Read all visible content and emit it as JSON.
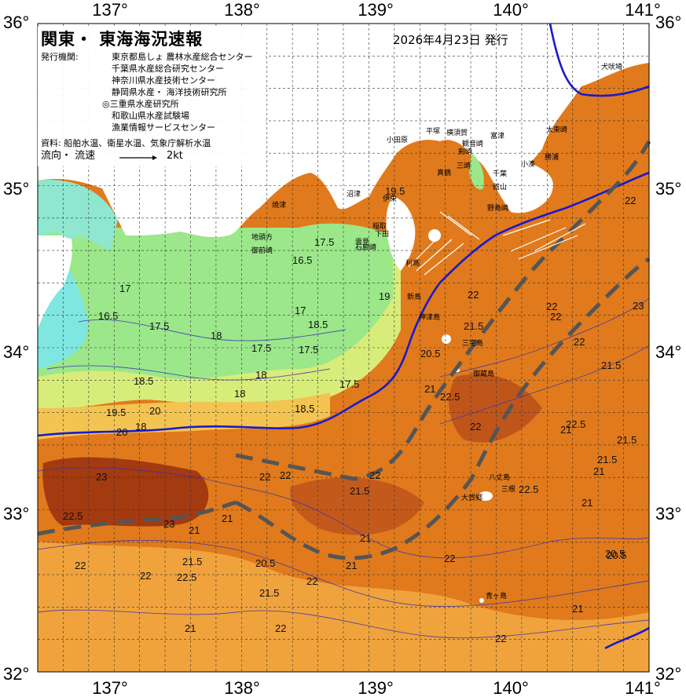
{
  "header": {
    "title": "関東・ 東海海況速報",
    "issue_date": "2026年4月23日 発行",
    "issuers_label": "発行機関:",
    "issuers": [
      "東京都島しょ 農林水産総合センター",
      "千葉県水産総合研究センター",
      "神奈川県水産技術センター",
      "静岡県水産・ 海洋技術研究所",
      "◎三重県水産研究所",
      "和歌山県水産試験場",
      "漁業情報サービスセンター"
    ],
    "source": "資料: 船舶水温、衛星水温、気象庁解析水温",
    "flow_label": "流向・ 流速",
    "flow_scale": "2kt"
  },
  "axes": {
    "lon_labels": [
      "137°",
      "138°",
      "139°",
      "140°",
      "141°"
    ],
    "lat_labels": [
      "36°",
      "35°",
      "34°",
      "33°",
      "32°"
    ]
  },
  "places": [
    {
      "name": "犬吠埼"
    },
    {
      "name": "太東崎"
    },
    {
      "name": "勝浦"
    },
    {
      "name": "小湊"
    },
    {
      "name": "富津"
    },
    {
      "name": "千葉"
    },
    {
      "name": "館山"
    },
    {
      "name": "野島崎"
    },
    {
      "name": "平塚"
    },
    {
      "name": "横須賀"
    },
    {
      "name": "小田原"
    },
    {
      "name": "観音崎"
    },
    {
      "name": "剣崎"
    },
    {
      "name": "三崎"
    },
    {
      "name": "真鶴"
    },
    {
      "name": "沼津"
    },
    {
      "name": "焼津"
    },
    {
      "name": "伊東"
    },
    {
      "name": "稲取"
    },
    {
      "name": "下田"
    },
    {
      "name": "石廊崎"
    },
    {
      "name": "雲見"
    },
    {
      "name": "地頭方"
    },
    {
      "name": "御前崎"
    },
    {
      "name": "利島"
    },
    {
      "name": "新島"
    },
    {
      "name": "神津島"
    },
    {
      "name": "三宅島"
    },
    {
      "name": "御蔵島"
    },
    {
      "name": "八丈島"
    },
    {
      "name": "三根"
    },
    {
      "name": "大賀郷"
    },
    {
      "name": "青ヶ島"
    }
  ],
  "isotherm_labels": [
    "16.5",
    "17",
    "17.5",
    "16.5",
    "17.5",
    "17",
    "18",
    "17.5",
    "18.5",
    "18",
    "17.5",
    "18",
    "18.5",
    "17.5",
    "19",
    "19.5",
    "20",
    "18",
    "18.5",
    "19.5",
    "20",
    "20.5",
    "21",
    "21.5",
    "22",
    "22.5",
    "23",
    "22",
    "23",
    "22.5",
    "22",
    "22",
    "21.5",
    "21",
    "22",
    "22.5",
    "23",
    "22",
    "21.5",
    "22",
    "22",
    "21.5",
    "21",
    "20.5",
    "21",
    "22",
    "21",
    "21.5",
    "22",
    "22",
    "21",
    "21.5",
    "21",
    "20.5",
    "21",
    "22",
    "22.5",
    "22",
    "22.5",
    "22",
    "21.5",
    "21",
    "20.5",
    "21",
    "22"
  ],
  "legend_colors": {
    "cold": "#7fe6e0",
    "cool": "#9be78a",
    "mild": "#d8ec7a",
    "warm": "#f4b24a",
    "hot": "#e8771a",
    "hottest": "#b0400e",
    "kuroshio": "#555555",
    "isotherm_20": "#1a1acc"
  }
}
